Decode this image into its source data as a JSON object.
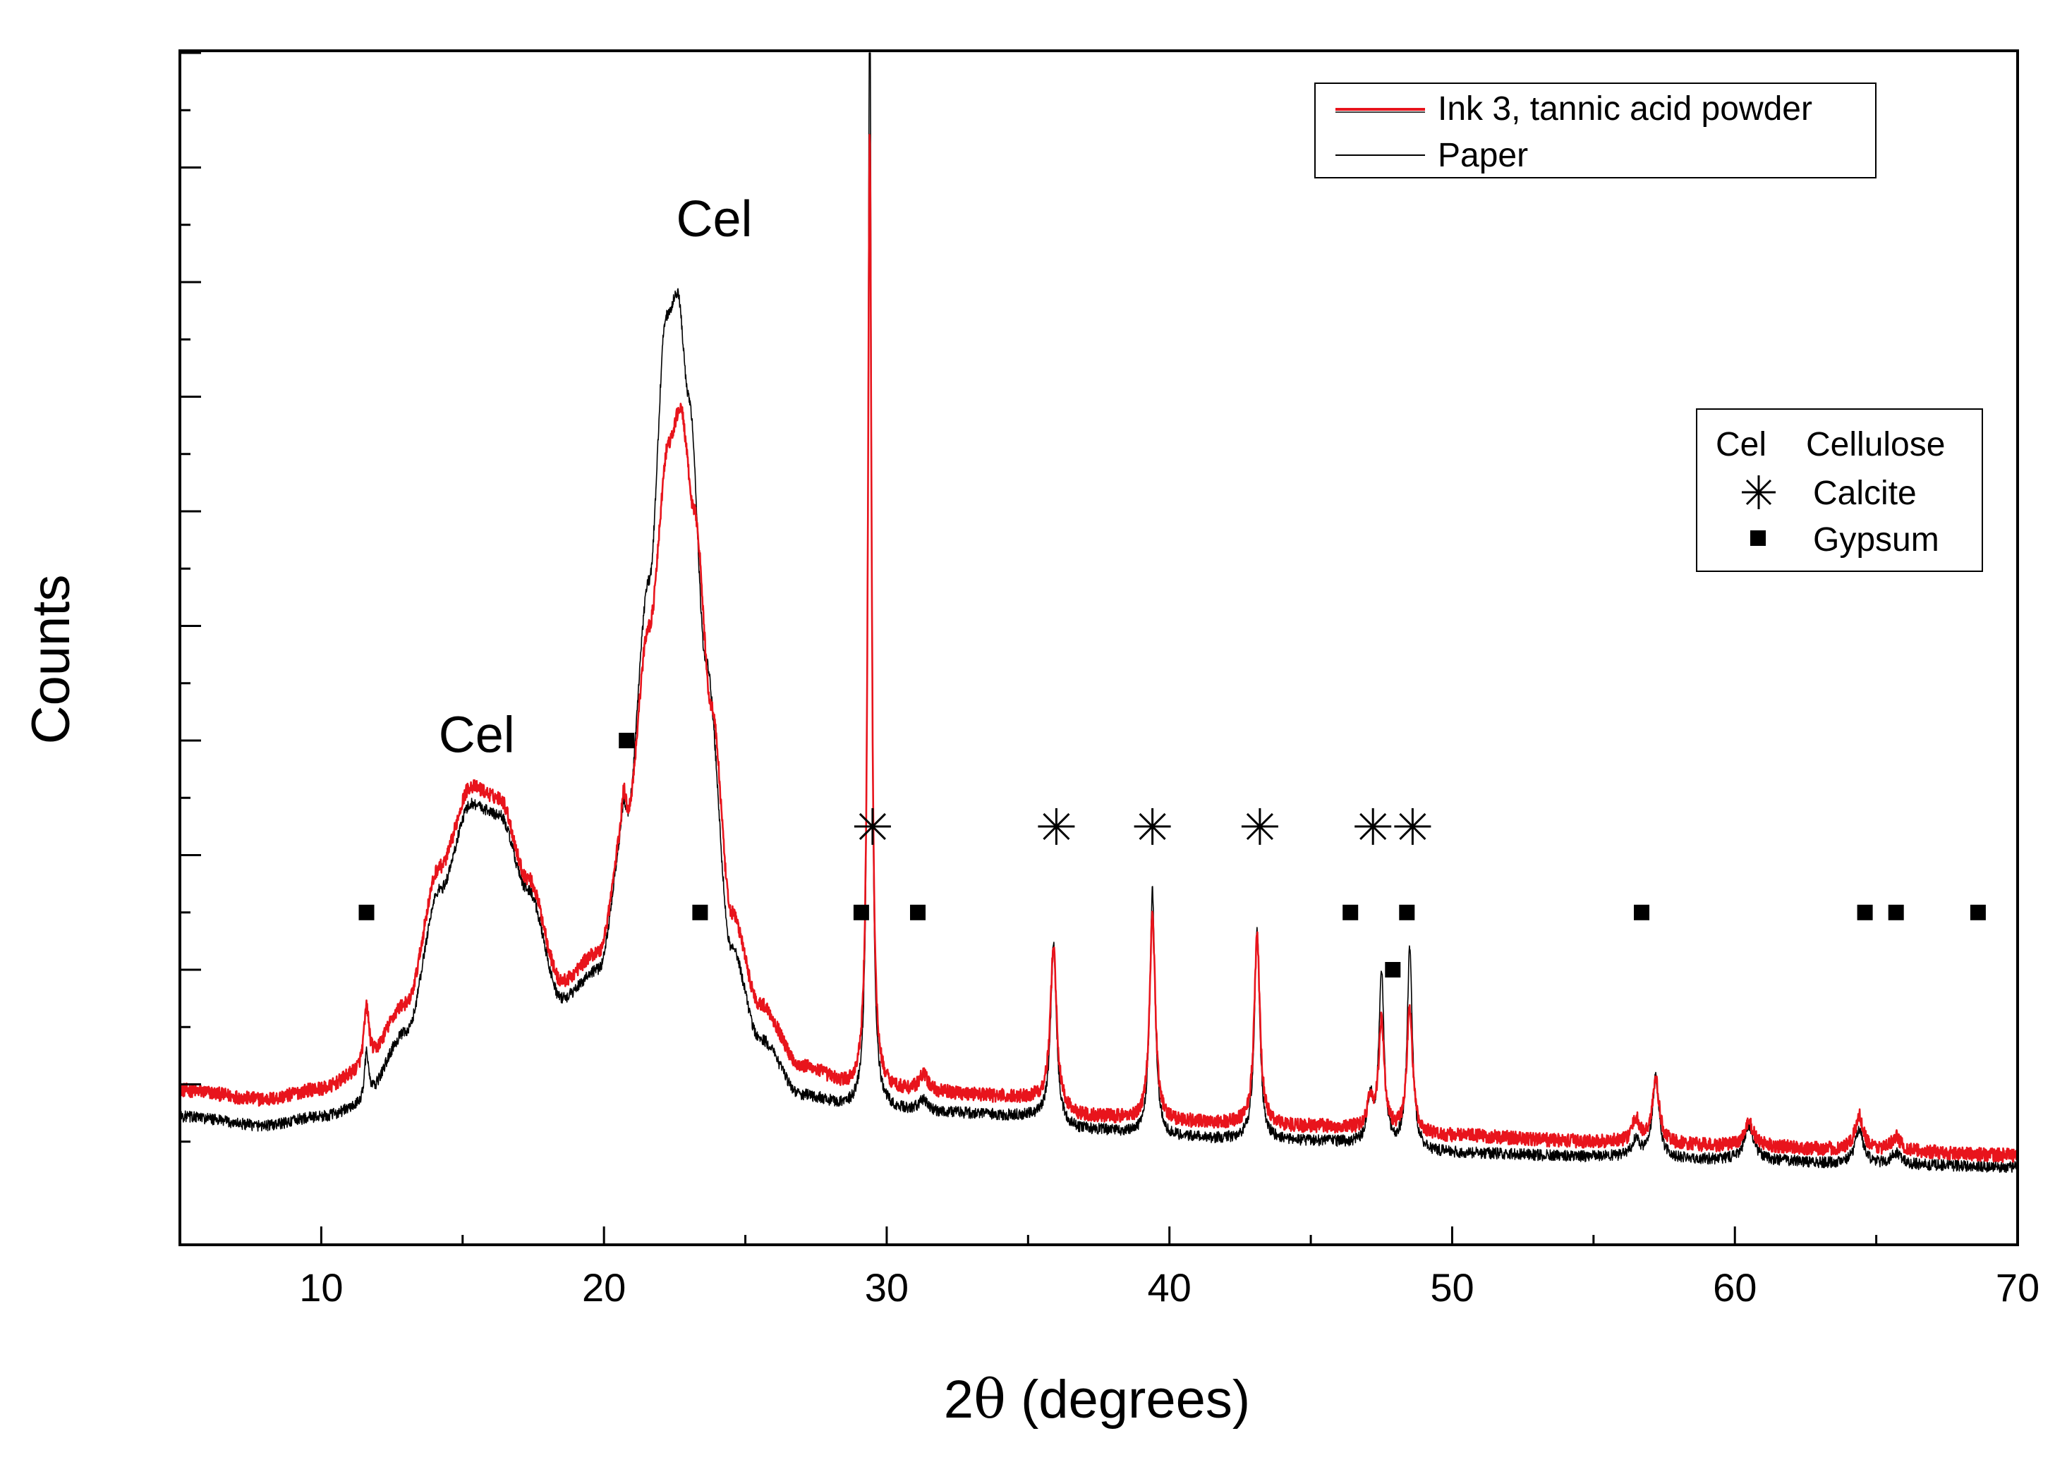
{
  "chart_data": {
    "type": "line",
    "title": "",
    "xlabel_prefix": "2",
    "xlabel_theta": "θ",
    "xlabel_suffix": " (degrees)",
    "ylabel": "Counts",
    "xlim": [
      5,
      70
    ],
    "ylim": [
      0,
      1000
    ],
    "xticks": [
      10,
      20,
      30,
      40,
      50,
      60,
      70
    ],
    "xtick_labels": [
      "10",
      "20",
      "30",
      "40",
      "50",
      "60",
      "70"
    ],
    "grid": false,
    "yticks_labeled": false,
    "legend_position": "top-right",
    "series": [
      {
        "name": "Ink 3, tannic acid powder",
        "color": "#e8141c",
        "base": [
          [
            5,
            95
          ],
          [
            8,
            87
          ],
          [
            10,
            96
          ],
          [
            11.4,
            110
          ],
          [
            13,
            170
          ],
          [
            14.2,
            290
          ],
          [
            15.3,
            360
          ],
          [
            16.3,
            350
          ],
          [
            17.3,
            280
          ],
          [
            18.5,
            190
          ],
          [
            19.8,
            215
          ],
          [
            20.8,
            330
          ],
          [
            21.6,
            500
          ],
          [
            22.3,
            660
          ],
          [
            22.7,
            690
          ],
          [
            23.2,
            600
          ],
          [
            23.8,
            430
          ],
          [
            24.5,
            250
          ],
          [
            25.5,
            170
          ],
          [
            27,
            115
          ],
          [
            29,
            95
          ],
          [
            32,
            92
          ],
          [
            35,
            88
          ],
          [
            37,
            72
          ],
          [
            40,
            67
          ],
          [
            45,
            63
          ],
          [
            50,
            55
          ],
          [
            55,
            50
          ],
          [
            60,
            46
          ],
          [
            65,
            42
          ],
          [
            70,
            38
          ]
        ],
        "peaks": [
          [
            11.6,
            55,
            0.12
          ],
          [
            20.7,
            30,
            0.1
          ],
          [
            29.4,
            830,
            0.08
          ],
          [
            31.3,
            15,
            0.2
          ],
          [
            35.9,
            140,
            0.13
          ],
          [
            39.4,
            180,
            0.12
          ],
          [
            43.1,
            165,
            0.12
          ],
          [
            47.1,
            25,
            0.12
          ],
          [
            47.5,
            95,
            0.12
          ],
          [
            48.5,
            110,
            0.12
          ],
          [
            56.5,
            20,
            0.15
          ],
          [
            57.2,
            55,
            0.15
          ],
          [
            60.5,
            20,
            0.2
          ],
          [
            64.4,
            30,
            0.18
          ],
          [
            65.7,
            12,
            0.2
          ]
        ],
        "noise": 6
      },
      {
        "name": "Paper",
        "color": "#000000",
        "base": [
          [
            5,
            72
          ],
          [
            8,
            64
          ],
          [
            10,
            72
          ],
          [
            11.4,
            80
          ],
          [
            13,
            145
          ],
          [
            14.2,
            270
          ],
          [
            15.3,
            345
          ],
          [
            16.3,
            335
          ],
          [
            17.3,
            270
          ],
          [
            18.5,
            175
          ],
          [
            19.8,
            200
          ],
          [
            20.8,
            330
          ],
          [
            21.6,
            540
          ],
          [
            22.2,
            770
          ],
          [
            22.6,
            790
          ],
          [
            23.0,
            700
          ],
          [
            23.6,
            470
          ],
          [
            24.5,
            220
          ],
          [
            25.5,
            140
          ],
          [
            27,
            90
          ],
          [
            29,
            78
          ],
          [
            32,
            75
          ],
          [
            35,
            72
          ],
          [
            37,
            60
          ],
          [
            40,
            53
          ],
          [
            45,
            50
          ],
          [
            50,
            40
          ],
          [
            55,
            37
          ],
          [
            60,
            34
          ],
          [
            65,
            30
          ],
          [
            70,
            28
          ]
        ],
        "peaks": [
          [
            11.6,
            45,
            0.1
          ],
          [
            20.7,
            20,
            0.1
          ],
          [
            29.4,
            1000,
            0.07
          ],
          [
            31.3,
            10,
            0.2
          ],
          [
            35.9,
            155,
            0.12
          ],
          [
            39.4,
            215,
            0.11
          ],
          [
            43.1,
            185,
            0.11
          ],
          [
            47.1,
            40,
            0.12
          ],
          [
            47.5,
            150,
            0.11
          ],
          [
            48.5,
            175,
            0.11
          ],
          [
            56.5,
            15,
            0.15
          ],
          [
            57.2,
            70,
            0.14
          ],
          [
            60.5,
            30,
            0.2
          ],
          [
            64.4,
            30,
            0.18
          ],
          [
            65.7,
            10,
            0.2
          ]
        ],
        "noise": 5
      }
    ],
    "annotations": [
      {
        "text": "Cel",
        "x": 15.5,
        "y": 390,
        "kind": "label"
      },
      {
        "text": "Cel",
        "x": 23.9,
        "y": 840,
        "kind": "label"
      }
    ],
    "calcite_markers": [
      29.5,
      36.0,
      39.4,
      43.2,
      47.2,
      48.6
    ],
    "calcite_marker_y": 325,
    "gypsum_markers": [
      {
        "x": 11.6,
        "y": 250
      },
      {
        "x": 20.8,
        "y": 400
      },
      {
        "x": 23.4,
        "y": 250
      },
      {
        "x": 29.1,
        "y": 250
      },
      {
        "x": 31.1,
        "y": 250
      },
      {
        "x": 46.4,
        "y": 250
      },
      {
        "x": 48.4,
        "y": 250
      },
      {
        "x": 47.9,
        "y": 200
      },
      {
        "x": 56.7,
        "y": 250
      },
      {
        "x": 64.6,
        "y": 250
      },
      {
        "x": 65.7,
        "y": 250
      },
      {
        "x": 68.6,
        "y": 250
      }
    ],
    "phase_legend": {
      "cellulose_symbol": "Cel",
      "cellulose_label": "Cellulose",
      "calcite_label": "Calcite",
      "gypsum_label": "Gypsum"
    }
  }
}
